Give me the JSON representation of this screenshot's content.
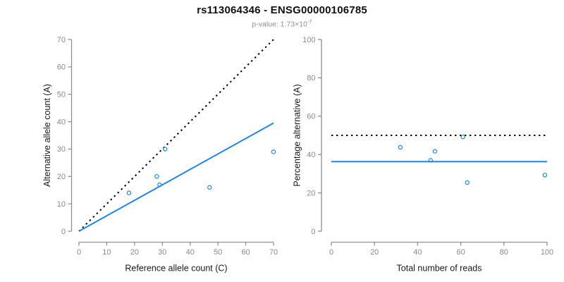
{
  "header": {
    "title": "rs113064346 - ENSG00000106785",
    "subtitle_label": "p-value: ",
    "subtitle_value_mantissa": "1.73×10",
    "subtitle_value_exponent": "-7"
  },
  "colors": {
    "accent_blue": "#1C86EE",
    "line_black": "#000000",
    "axis_gray": "#909090",
    "tick_text_gray": "#8a8a8a",
    "axis_label_black": "#1a1a1a"
  },
  "chart_data": [
    {
      "type": "scatter",
      "panel": "left",
      "xlabel": "Reference allele count (C)",
      "ylabel": "Alternative allele count (A)",
      "xlim": [
        0,
        70
      ],
      "ylim": [
        0,
        70
      ],
      "xticks": [
        0,
        10,
        20,
        30,
        40,
        50,
        60,
        70
      ],
      "yticks": [
        0,
        10,
        20,
        30,
        40,
        50,
        60,
        70
      ],
      "grid": false,
      "points": [
        {
          "x": 18,
          "y": 14
        },
        {
          "x": 28,
          "y": 20
        },
        {
          "x": 29,
          "y": 17
        },
        {
          "x": 31,
          "y": 30
        },
        {
          "x": 47,
          "y": 16
        },
        {
          "x": 70,
          "y": 29
        }
      ],
      "lines": [
        {
          "name": "identity-line",
          "x1": 0,
          "y1": 0,
          "x2": 70,
          "y2": 70,
          "dashed": true,
          "color_key": "line_black"
        },
        {
          "name": "fit-line",
          "x1": 0,
          "y1": 0,
          "x2": 70,
          "y2": 39.5,
          "dashed": false,
          "color_key": "accent_blue"
        }
      ]
    },
    {
      "type": "scatter",
      "panel": "right",
      "xlabel": "Total number of reads",
      "ylabel": "Percentage alternative (A)",
      "xlim": [
        0,
        100
      ],
      "ylim": [
        0,
        100
      ],
      "xticks": [
        0,
        20,
        40,
        60,
        80,
        100
      ],
      "yticks": [
        0,
        20,
        40,
        60,
        80,
        100
      ],
      "grid": false,
      "points": [
        {
          "x": 32,
          "y": 43.8
        },
        {
          "x": 46,
          "y": 37.0
        },
        {
          "x": 48,
          "y": 41.7
        },
        {
          "x": 61,
          "y": 49.2
        },
        {
          "x": 63,
          "y": 25.4
        },
        {
          "x": 99,
          "y": 29.3
        }
      ],
      "lines": [
        {
          "name": "reference-line-50pct",
          "x1": 0,
          "y1": 50,
          "x2": 100,
          "y2": 50,
          "dashed": true,
          "color_key": "line_black"
        },
        {
          "name": "mean-percentage-line",
          "x1": 0,
          "y1": 36.3,
          "x2": 100,
          "y2": 36.3,
          "dashed": false,
          "color_key": "accent_blue"
        }
      ]
    }
  ]
}
